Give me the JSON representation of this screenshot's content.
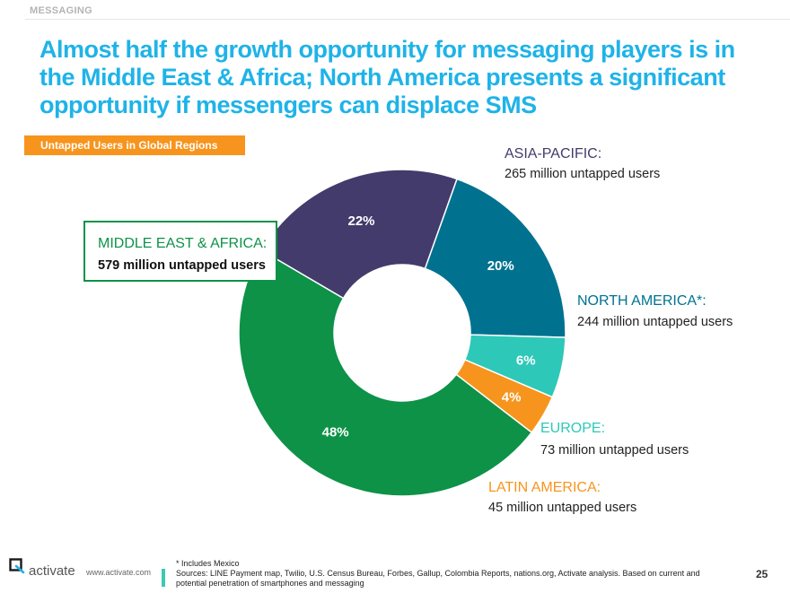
{
  "section_tag": "MESSAGING",
  "headline": "Almost half the growth opportunity for messaging players is in the Middle East & Africa; North America presents a significant opportunity if messengers can displace SMS",
  "chart_data": {
    "type": "pie",
    "donut": true,
    "title": "Untapped Users in Global Regions",
    "slices": [
      {
        "name": "ASIA-PACIFIC:",
        "value": 22,
        "label": "22%",
        "users": "265 million untapped users",
        "color": "#433b6b"
      },
      {
        "name": "NORTH AMERICA*:",
        "value": 20,
        "label": "20%",
        "users": "244 million untapped users",
        "color": "#007290"
      },
      {
        "name": "EUROPE:",
        "value": 6,
        "label": "6%",
        "users": "73 million untapped users",
        "color": "#2ec8b8"
      },
      {
        "name": "LATIN AMERICA:",
        "value": 4,
        "label": "4%",
        "users": "45 million untapped users",
        "color": "#f7941d"
      },
      {
        "name": "MIDDLE EAST & AFRICA:",
        "value": 48,
        "label": "48%",
        "users": "579 million untapped users",
        "color": "#0d9248"
      }
    ]
  },
  "footer": {
    "brand": "activate",
    "url": "www.activate.com",
    "footnote": "* Includes Mexico",
    "sources": "Sources: LINE Payment map, Twilio, U.S. Census Bureau, Forbes, Gallup, Colombia Reports, nations.org, Activate analysis.  Based on current and potential penetration of smartphones and messaging",
    "page_number": "25"
  }
}
